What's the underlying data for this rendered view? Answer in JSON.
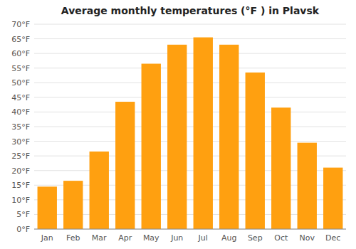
{
  "chart_data": {
    "type": "bar",
    "title": "Average monthly temperatures (°F ) in Plavsk",
    "categories": [
      "Jan",
      "Feb",
      "Mar",
      "Apr",
      "May",
      "Jun",
      "Jul",
      "Aug",
      "Sep",
      "Oct",
      "Nov",
      "Dec"
    ],
    "values": [
      14.5,
      16.5,
      26.5,
      43.5,
      56.5,
      63.0,
      65.5,
      63.0,
      53.5,
      41.5,
      29.5,
      21.0
    ],
    "color": "#FFA010",
    "ylim": [
      0,
      70
    ],
    "yticks": [
      {
        "value": 0,
        "label": "0°F"
      },
      {
        "value": 5,
        "label": "5°F"
      },
      {
        "value": 10,
        "label": "10°F"
      },
      {
        "value": 15,
        "label": "15°F"
      },
      {
        "value": 20,
        "label": "20°F"
      },
      {
        "value": 25,
        "label": "25°F"
      },
      {
        "value": 30,
        "label": "30°F"
      },
      {
        "value": 35,
        "label": "35°F"
      },
      {
        "value": 40,
        "label": "40°F"
      },
      {
        "value": 45,
        "label": "45°F"
      },
      {
        "value": 50,
        "label": "50°F"
      },
      {
        "value": 55,
        "label": "55°F"
      },
      {
        "value": 60,
        "label": "60°F"
      },
      {
        "value": 65,
        "label": "65°F"
      },
      {
        "value": 70,
        "label": "70°F"
      }
    ],
    "grid": true
  }
}
